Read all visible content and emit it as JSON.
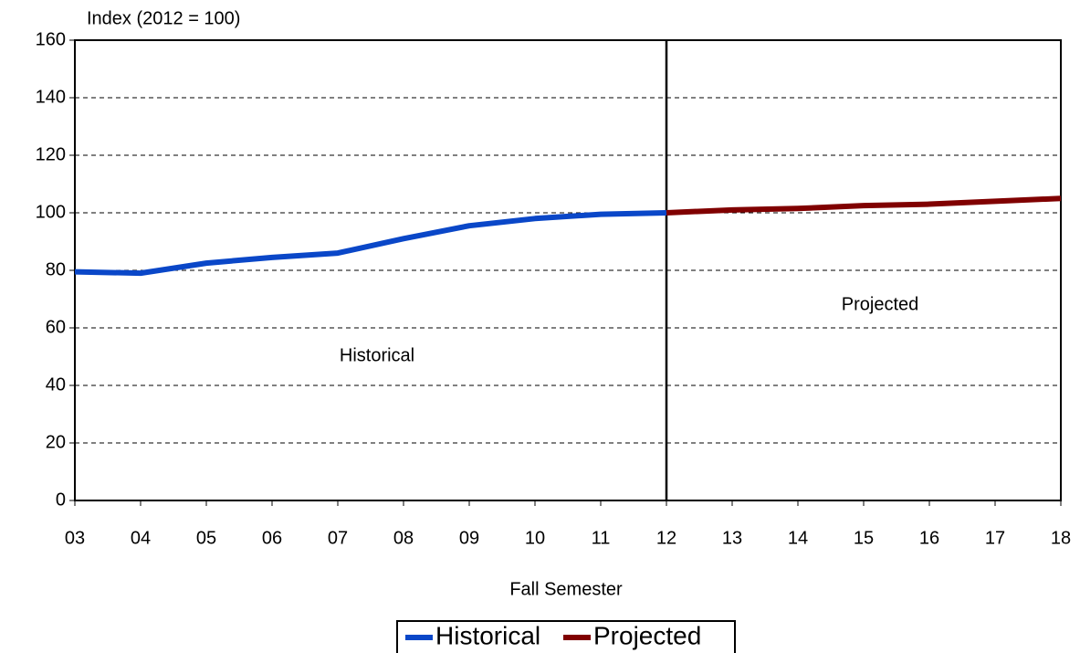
{
  "chart_data": {
    "type": "line",
    "y_label": "Index (2012 = 100)",
    "x_label": "Fall Semester",
    "categories": [
      "03",
      "04",
      "05",
      "06",
      "07",
      "08",
      "09",
      "10",
      "11",
      "12",
      "13",
      "14",
      "15",
      "16",
      "17",
      "18"
    ],
    "series": [
      {
        "name": "Historical",
        "color": "#0a47c8",
        "values": [
          79.5,
          79,
          82.5,
          84.5,
          86,
          91,
          95.5,
          98,
          99.5,
          100,
          null,
          null,
          null,
          null,
          null,
          null
        ]
      },
      {
        "name": "Projected",
        "color": "#800000",
        "values": [
          null,
          null,
          null,
          null,
          null,
          null,
          null,
          null,
          null,
          100,
          101,
          101.5,
          102.5,
          103,
          104,
          105
        ]
      }
    ],
    "annotations": [
      "Historical",
      "Projected"
    ],
    "ylim": [
      0,
      160
    ],
    "yticks": [
      0,
      20,
      40,
      60,
      80,
      100,
      120,
      140,
      160
    ],
    "grid": true
  }
}
